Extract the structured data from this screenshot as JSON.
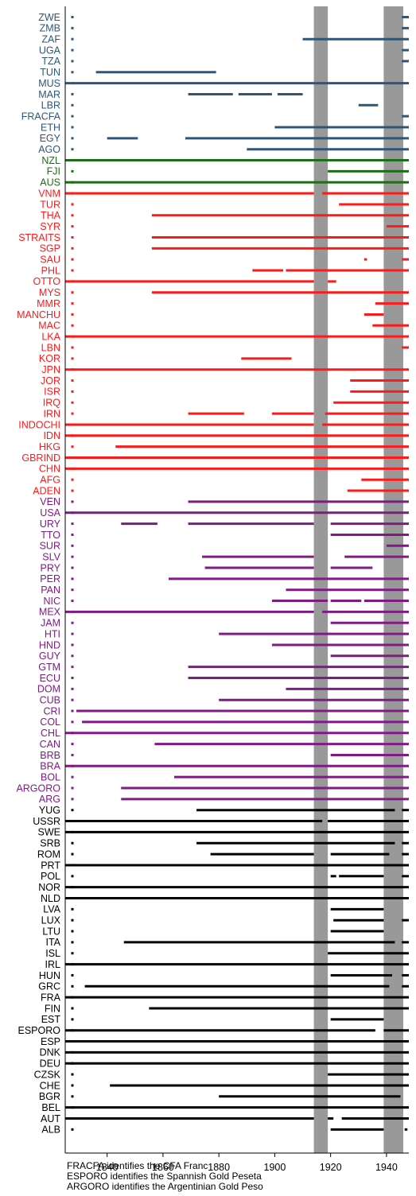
{
  "chart_data": {
    "type": "timeline",
    "title": "",
    "xlabel": "",
    "ylabel": "",
    "xlim": [
      1825,
      1948
    ],
    "xticks": [
      1840,
      1860,
      1880,
      1900,
      1920,
      1940
    ],
    "grid": false,
    "legend": "none",
    "shaded_periods": [
      {
        "from": 1914,
        "to": 1919
      },
      {
        "from": 1939,
        "to": 1946
      }
    ],
    "colors": {
      "Africa": "#2e5679",
      "Oceania": "#1e6e17",
      "Asia": "#ff1a1a",
      "Americas": "#7f1a86",
      "Europe": "#000000",
      "shading": "#999999"
    },
    "countries": [
      {
        "code": "ZWE",
        "group": "Africa",
        "spans": [
          [
            1945.5,
            1948
          ]
        ]
      },
      {
        "code": "ZMB",
        "group": "Africa",
        "spans": [
          [
            1945.5,
            1948
          ]
        ]
      },
      {
        "code": "ZAF",
        "group": "Africa",
        "spans": [
          [
            1910,
            1948
          ]
        ]
      },
      {
        "code": "UGA",
        "group": "Africa",
        "spans": [
          [
            1945.5,
            1948
          ]
        ]
      },
      {
        "code": "TZA",
        "group": "Africa",
        "spans": [
          [
            1945.5,
            1948
          ]
        ]
      },
      {
        "code": "TUN",
        "group": "Africa",
        "spans": [
          [
            1836,
            1879
          ]
        ]
      },
      {
        "code": "MUS",
        "group": "Africa",
        "spans": [
          [
            1825,
            1948
          ]
        ]
      },
      {
        "code": "MAR",
        "group": "Africa",
        "spans": [
          [
            1869,
            1885
          ],
          [
            1887,
            1899
          ],
          [
            1901,
            1910
          ]
        ]
      },
      {
        "code": "LBR",
        "group": "Africa",
        "spans": [
          [
            1930,
            1937
          ]
        ]
      },
      {
        "code": "FRACFA",
        "group": "Africa",
        "spans": [
          [
            1945.5,
            1948
          ]
        ]
      },
      {
        "code": "ETH",
        "group": "Africa",
        "spans": [
          [
            1900,
            1948
          ]
        ]
      },
      {
        "code": "EGY",
        "group": "Africa",
        "spans": [
          [
            1840,
            1851
          ],
          [
            1868,
            1948
          ]
        ]
      },
      {
        "code": "AGO",
        "group": "Africa",
        "spans": [
          [
            1890,
            1948
          ]
        ]
      },
      {
        "code": "NZL",
        "group": "Oceania",
        "spans": [
          [
            1825,
            1948
          ]
        ]
      },
      {
        "code": "FJI",
        "group": "Oceania",
        "spans": [
          [
            1919,
            1948
          ]
        ]
      },
      {
        "code": "AUS",
        "group": "Oceania",
        "spans": [
          [
            1825,
            1948
          ]
        ]
      },
      {
        "code": "VNM",
        "group": "Asia",
        "spans": [
          [
            1825,
            1914
          ],
          [
            1917,
            1948
          ]
        ]
      },
      {
        "code": "TUR",
        "group": "Asia",
        "spans": [
          [
            1923,
            1948
          ]
        ]
      },
      {
        "code": "THA",
        "group": "Asia",
        "spans": [
          [
            1856,
            1948
          ]
        ]
      },
      {
        "code": "SYR",
        "group": "Asia",
        "spans": [
          [
            1940,
            1948
          ]
        ]
      },
      {
        "code": "STRAITS",
        "group": "Asia",
        "spans": [
          [
            1856,
            1948
          ]
        ]
      },
      {
        "code": "SGP",
        "group": "Asia",
        "spans": [
          [
            1856,
            1948
          ]
        ]
      },
      {
        "code": "SAU",
        "group": "Asia",
        "spans": [
          [
            1932,
            1933
          ],
          [
            1945.5,
            1948
          ]
        ]
      },
      {
        "code": "PHL",
        "group": "Asia",
        "spans": [
          [
            1892,
            1903
          ],
          [
            1904,
            1948
          ]
        ]
      },
      {
        "code": "OTTO",
        "group": "Asia",
        "spans": [
          [
            1825,
            1914
          ],
          [
            1919,
            1922
          ]
        ]
      },
      {
        "code": "MYS",
        "group": "Asia",
        "spans": [
          [
            1856,
            1948
          ]
        ]
      },
      {
        "code": "MMR",
        "group": "Asia",
        "spans": [
          [
            1936,
            1948
          ]
        ]
      },
      {
        "code": "MANCHU",
        "group": "Asia",
        "spans": [
          [
            1932,
            1939
          ]
        ]
      },
      {
        "code": "MAC",
        "group": "Asia",
        "spans": [
          [
            1935,
            1948
          ]
        ]
      },
      {
        "code": "LKA",
        "group": "Asia",
        "spans": [
          [
            1825,
            1948
          ]
        ]
      },
      {
        "code": "LBN",
        "group": "Asia",
        "spans": [
          [
            1945.5,
            1948
          ]
        ]
      },
      {
        "code": "KOR",
        "group": "Asia",
        "spans": [
          [
            1888,
            1906
          ]
        ]
      },
      {
        "code": "JPN",
        "group": "Asia",
        "spans": [
          [
            1825,
            1948
          ]
        ]
      },
      {
        "code": "JOR",
        "group": "Asia",
        "spans": [
          [
            1927,
            1948
          ]
        ]
      },
      {
        "code": "ISR",
        "group": "Asia",
        "spans": [
          [
            1927,
            1948
          ]
        ]
      },
      {
        "code": "IRQ",
        "group": "Asia",
        "spans": [
          [
            1921,
            1948
          ]
        ]
      },
      {
        "code": "IRN",
        "group": "Asia",
        "spans": [
          [
            1869,
            1889
          ],
          [
            1899,
            1914
          ],
          [
            1918,
            1948
          ]
        ]
      },
      {
        "code": "INDOCHI",
        "group": "Asia",
        "spans": [
          [
            1825,
            1914
          ],
          [
            1917,
            1948
          ]
        ]
      },
      {
        "code": "IDN",
        "group": "Asia",
        "spans": [
          [
            1825,
            1948
          ]
        ]
      },
      {
        "code": "HKG",
        "group": "Asia",
        "spans": [
          [
            1843,
            1948
          ]
        ]
      },
      {
        "code": "GBRIND",
        "group": "Asia",
        "spans": [
          [
            1825,
            1948
          ]
        ]
      },
      {
        "code": "CHN",
        "group": "Asia",
        "spans": [
          [
            1825,
            1948
          ]
        ]
      },
      {
        "code": "AFG",
        "group": "Asia",
        "spans": [
          [
            1931,
            1948
          ]
        ]
      },
      {
        "code": "ADEN",
        "group": "Asia",
        "spans": [
          [
            1926,
            1948
          ]
        ]
      },
      {
        "code": "VEN",
        "group": "Americas",
        "spans": [
          [
            1869,
            1948
          ]
        ]
      },
      {
        "code": "USA",
        "group": "Americas",
        "spans": [
          [
            1825,
            1948
          ]
        ]
      },
      {
        "code": "URY",
        "group": "Americas",
        "spans": [
          [
            1845,
            1858
          ],
          [
            1869,
            1914
          ],
          [
            1920,
            1948
          ]
        ]
      },
      {
        "code": "TTO",
        "group": "Americas",
        "spans": [
          [
            1920,
            1948
          ]
        ]
      },
      {
        "code": "SUR",
        "group": "Americas",
        "spans": [
          [
            1940,
            1948
          ]
        ]
      },
      {
        "code": "SLV",
        "group": "Americas",
        "spans": [
          [
            1874,
            1914
          ],
          [
            1925,
            1948
          ]
        ]
      },
      {
        "code": "PRY",
        "group": "Americas",
        "spans": [
          [
            1875,
            1914
          ],
          [
            1920,
            1935
          ]
        ]
      },
      {
        "code": "PER",
        "group": "Americas",
        "spans": [
          [
            1862,
            1948
          ]
        ]
      },
      {
        "code": "PAN",
        "group": "Americas",
        "spans": [
          [
            1904,
            1948
          ]
        ]
      },
      {
        "code": "NIC",
        "group": "Americas",
        "spans": [
          [
            1899,
            1919
          ],
          [
            1920,
            1931
          ],
          [
            1932,
            1948
          ]
        ]
      },
      {
        "code": "MEX",
        "group": "Americas",
        "spans": [
          [
            1825,
            1914
          ],
          [
            1917,
            1948
          ]
        ]
      },
      {
        "code": "JAM",
        "group": "Americas",
        "spans": [
          [
            1920,
            1948
          ]
        ]
      },
      {
        "code": "HTI",
        "group": "Americas",
        "spans": [
          [
            1880,
            1948
          ]
        ]
      },
      {
        "code": "HND",
        "group": "Americas",
        "spans": [
          [
            1899,
            1948
          ]
        ]
      },
      {
        "code": "GUY",
        "group": "Americas",
        "spans": [
          [
            1920,
            1948
          ]
        ]
      },
      {
        "code": "GTM",
        "group": "Americas",
        "spans": [
          [
            1869,
            1948
          ]
        ]
      },
      {
        "code": "ECU",
        "group": "Americas",
        "spans": [
          [
            1869,
            1948
          ]
        ]
      },
      {
        "code": "DOM",
        "group": "Americas",
        "spans": [
          [
            1904,
            1948
          ]
        ]
      },
      {
        "code": "CUB",
        "group": "Americas",
        "spans": [
          [
            1880,
            1948
          ]
        ]
      },
      {
        "code": "CRI",
        "group": "Americas",
        "spans": [
          [
            1829,
            1948
          ]
        ]
      },
      {
        "code": "COL",
        "group": "Americas",
        "spans": [
          [
            1831,
            1948
          ]
        ]
      },
      {
        "code": "CHL",
        "group": "Americas",
        "spans": [
          [
            1825,
            1948
          ]
        ]
      },
      {
        "code": "CAN",
        "group": "Americas",
        "spans": [
          [
            1857,
            1948
          ]
        ]
      },
      {
        "code": "BRB",
        "group": "Americas",
        "spans": [
          [
            1920,
            1948
          ]
        ]
      },
      {
        "code": "BRA",
        "group": "Americas",
        "spans": [
          [
            1825,
            1948
          ]
        ]
      },
      {
        "code": "BOL",
        "group": "Americas",
        "spans": [
          [
            1864,
            1948
          ]
        ]
      },
      {
        "code": "ARGORO",
        "group": "Americas",
        "spans": [
          [
            1845,
            1948
          ]
        ]
      },
      {
        "code": "ARG",
        "group": "Americas",
        "spans": [
          [
            1845,
            1948
          ]
        ]
      },
      {
        "code": "YUG",
        "group": "Europe",
        "spans": [
          [
            1872,
            1943
          ],
          [
            1945.5,
            1948
          ]
        ]
      },
      {
        "code": "USSR",
        "group": "Europe",
        "spans": [
          [
            1825,
            1917
          ],
          [
            1919,
            1948
          ]
        ]
      },
      {
        "code": "SWE",
        "group": "Europe",
        "spans": [
          [
            1825,
            1948
          ]
        ]
      },
      {
        "code": "SRB",
        "group": "Europe",
        "spans": [
          [
            1872,
            1943
          ],
          [
            1945.5,
            1948
          ]
        ]
      },
      {
        "code": "ROM",
        "group": "Europe",
        "spans": [
          [
            1877,
            1914
          ],
          [
            1920,
            1941
          ],
          [
            1945.5,
            1948
          ]
        ]
      },
      {
        "code": "PRT",
        "group": "Europe",
        "spans": [
          [
            1825,
            1948
          ]
        ]
      },
      {
        "code": "POL",
        "group": "Europe",
        "spans": [
          [
            1920,
            1922
          ],
          [
            1923,
            1939
          ],
          [
            1945.5,
            1948
          ]
        ]
      },
      {
        "code": "NOR",
        "group": "Europe",
        "spans": [
          [
            1825,
            1948
          ]
        ]
      },
      {
        "code": "NLD",
        "group": "Europe",
        "spans": [
          [
            1825,
            1948
          ]
        ]
      },
      {
        "code": "LVA",
        "group": "Europe",
        "spans": [
          [
            1920,
            1939
          ]
        ]
      },
      {
        "code": "LUX",
        "group": "Europe",
        "spans": [
          [
            1921,
            1939
          ],
          [
            1945.5,
            1948
          ]
        ]
      },
      {
        "code": "LTU",
        "group": "Europe",
        "spans": [
          [
            1920,
            1939
          ]
        ]
      },
      {
        "code": "ITA",
        "group": "Europe",
        "spans": [
          [
            1846,
            1943
          ],
          [
            1945.5,
            1948
          ]
        ]
      },
      {
        "code": "ISL",
        "group": "Europe",
        "spans": [
          [
            1919,
            1948
          ]
        ]
      },
      {
        "code": "IRL",
        "group": "Europe",
        "spans": [
          [
            1825,
            1948
          ]
        ]
      },
      {
        "code": "HUN",
        "group": "Europe",
        "spans": [
          [
            1920,
            1942
          ],
          [
            1945.5,
            1948
          ]
        ]
      },
      {
        "code": "GRC",
        "group": "Europe",
        "spans": [
          [
            1832,
            1941
          ],
          [
            1945.5,
            1948
          ]
        ]
      },
      {
        "code": "FRA",
        "group": "Europe",
        "spans": [
          [
            1825,
            1948
          ]
        ]
      },
      {
        "code": "FIN",
        "group": "Europe",
        "spans": [
          [
            1855,
            1948
          ]
        ]
      },
      {
        "code": "EST",
        "group": "Europe",
        "spans": [
          [
            1920,
            1939
          ]
        ]
      },
      {
        "code": "ESPORO",
        "group": "Europe",
        "spans": [
          [
            1825,
            1936
          ],
          [
            1939,
            1948
          ]
        ]
      },
      {
        "code": "ESP",
        "group": "Europe",
        "spans": [
          [
            1825,
            1948
          ]
        ]
      },
      {
        "code": "DNK",
        "group": "Europe",
        "spans": [
          [
            1825,
            1948
          ]
        ]
      },
      {
        "code": "DEU",
        "group": "Europe",
        "spans": [
          [
            1825,
            1948
          ]
        ]
      },
      {
        "code": "CZSK",
        "group": "Europe",
        "spans": [
          [
            1919,
            1948
          ]
        ]
      },
      {
        "code": "CHE",
        "group": "Europe",
        "spans": [
          [
            1841,
            1948
          ]
        ]
      },
      {
        "code": "BGR",
        "group": "Europe",
        "spans": [
          [
            1880,
            1945
          ]
        ]
      },
      {
        "code": "BEL",
        "group": "Europe",
        "spans": [
          [
            1825,
            1948
          ]
        ]
      },
      {
        "code": "AUT",
        "group": "Europe",
        "spans": [
          [
            1825,
            1914
          ],
          [
            1919,
            1921
          ],
          [
            1924,
            1948
          ]
        ]
      },
      {
        "code": "ALB",
        "group": "Europe",
        "spans": [
          [
            1920,
            1939
          ],
          [
            1946.5,
            1947.5
          ]
        ]
      }
    ]
  },
  "notes": [
    "FRACFA identifies the CFA Franc",
    "ESPORO identifies the Spannish Gold Peseta",
    "ARGORO identifies the Argentinian Gold Peso"
  ]
}
